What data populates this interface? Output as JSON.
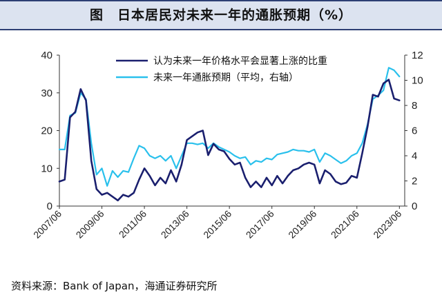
{
  "title": "图　日本居民对未来一年的通胀预期（%）",
  "source": "资料来源：Bank of Japan，海通证券研究所",
  "chart_data": {
    "type": "line",
    "title": "图　日本居民对未来一年的通胀预期（%）",
    "xlabel": "",
    "ylabel": "",
    "x_start": "2007/06",
    "x_end": "2023/09",
    "x_tick_labels": [
      "2007/06",
      "2009/06",
      "2011/06",
      "2013/06",
      "2015/06",
      "2017/06",
      "2019/06",
      "2021/06",
      "2023/06"
    ],
    "left_axis": {
      "ylim": [
        0,
        40
      ],
      "ticks": [
        0,
        10,
        20,
        30,
        40
      ]
    },
    "right_axis": {
      "ylim": [
        0,
        12
      ],
      "ticks": [
        0,
        2,
        4,
        6,
        8,
        10,
        12
      ]
    },
    "legend_position": "top-right",
    "grid": false,
    "series": [
      {
        "name": "认为未来一年价格水平会显著上涨的比重",
        "axis": "left",
        "color": "#1a1f6e",
        "points": [
          [
            "2007/06",
            6.5
          ],
          [
            "2007/09",
            7.0
          ],
          [
            "2007/12",
            23.5
          ],
          [
            "2008/03",
            25.0
          ],
          [
            "2008/06",
            31.0
          ],
          [
            "2008/09",
            28.0
          ],
          [
            "2008/12",
            12.0
          ],
          [
            "2009/03",
            4.5
          ],
          [
            "2009/06",
            3.0
          ],
          [
            "2009/09",
            3.5
          ],
          [
            "2009/12",
            2.5
          ],
          [
            "2010/03",
            1.5
          ],
          [
            "2010/06",
            3.0
          ],
          [
            "2010/09",
            2.5
          ],
          [
            "2010/12",
            3.5
          ],
          [
            "2011/03",
            7.0
          ],
          [
            "2011/06",
            10.0
          ],
          [
            "2011/09",
            8.0
          ],
          [
            "2011/12",
            5.5
          ],
          [
            "2012/03",
            7.5
          ],
          [
            "2012/06",
            6.0
          ],
          [
            "2012/09",
            9.5
          ],
          [
            "2012/12",
            6.5
          ],
          [
            "2013/03",
            11.0
          ],
          [
            "2013/06",
            17.5
          ],
          [
            "2013/09",
            18.5
          ],
          [
            "2013/12",
            19.5
          ],
          [
            "2014/03",
            20.0
          ],
          [
            "2014/06",
            13.5
          ],
          [
            "2014/09",
            16.5
          ],
          [
            "2014/12",
            15.0
          ],
          [
            "2015/03",
            14.5
          ],
          [
            "2015/06",
            12.5
          ],
          [
            "2015/09",
            11.0
          ],
          [
            "2015/12",
            11.5
          ],
          [
            "2016/03",
            7.5
          ],
          [
            "2016/06",
            5.0
          ],
          [
            "2016/09",
            6.5
          ],
          [
            "2016/12",
            5.0
          ],
          [
            "2017/03",
            7.5
          ],
          [
            "2017/06",
            5.5
          ],
          [
            "2017/09",
            8.0
          ],
          [
            "2017/12",
            6.0
          ],
          [
            "2018/03",
            8.0
          ],
          [
            "2018/06",
            9.5
          ],
          [
            "2018/09",
            10.0
          ],
          [
            "2018/12",
            11.0
          ],
          [
            "2019/03",
            11.5
          ],
          [
            "2019/06",
            11.0
          ],
          [
            "2019/09",
            6.0
          ],
          [
            "2019/12",
            9.5
          ],
          [
            "2020/03",
            8.5
          ],
          [
            "2020/06",
            6.5
          ],
          [
            "2020/09",
            5.8
          ],
          [
            "2020/12",
            6.2
          ],
          [
            "2021/03",
            8.0
          ],
          [
            "2021/06",
            7.5
          ],
          [
            "2021/09",
            14.0
          ],
          [
            "2021/12",
            21.0
          ],
          [
            "2022/03",
            29.5
          ],
          [
            "2022/06",
            29.0
          ],
          [
            "2022/09",
            32.5
          ],
          [
            "2022/12",
            33.5
          ],
          [
            "2023/03",
            28.5
          ],
          [
            "2023/06",
            28.0
          ]
        ]
      },
      {
        "name": "未来一年通胀预期（平均，右轴）",
        "axis": "right",
        "color": "#29c0ec",
        "points": [
          [
            "2007/06",
            4.5
          ],
          [
            "2007/09",
            4.5
          ],
          [
            "2007/12",
            7.2
          ],
          [
            "2008/03",
            7.4
          ],
          [
            "2008/06",
            9.0
          ],
          [
            "2008/09",
            8.5
          ],
          [
            "2008/12",
            5.0
          ],
          [
            "2009/03",
            2.5
          ],
          [
            "2009/06",
            3.0
          ],
          [
            "2009/09",
            1.6
          ],
          [
            "2009/12",
            2.8
          ],
          [
            "2010/03",
            2.3
          ],
          [
            "2010/06",
            2.8
          ],
          [
            "2010/09",
            2.7
          ],
          [
            "2010/12",
            3.8
          ],
          [
            "2011/03",
            4.8
          ],
          [
            "2011/06",
            4.6
          ],
          [
            "2011/09",
            4.0
          ],
          [
            "2011/12",
            3.8
          ],
          [
            "2012/03",
            4.0
          ],
          [
            "2012/06",
            3.6
          ],
          [
            "2012/09",
            4.0
          ],
          [
            "2012/12",
            3.0
          ],
          [
            "2013/03",
            4.0
          ],
          [
            "2013/06",
            5.0
          ],
          [
            "2013/09",
            5.0
          ],
          [
            "2013/12",
            4.9
          ],
          [
            "2014/03",
            5.0
          ],
          [
            "2014/06",
            4.6
          ],
          [
            "2014/09",
            5.0
          ],
          [
            "2014/12",
            4.7
          ],
          [
            "2015/03",
            4.5
          ],
          [
            "2015/06",
            4.3
          ],
          [
            "2015/09",
            4.0
          ],
          [
            "2015/12",
            3.8
          ],
          [
            "2016/03",
            3.9
          ],
          [
            "2016/06",
            3.3
          ],
          [
            "2016/09",
            3.6
          ],
          [
            "2016/12",
            3.5
          ],
          [
            "2017/03",
            3.8
          ],
          [
            "2017/06",
            3.7
          ],
          [
            "2017/09",
            4.1
          ],
          [
            "2017/12",
            4.2
          ],
          [
            "2018/03",
            4.3
          ],
          [
            "2018/06",
            4.5
          ],
          [
            "2018/09",
            4.4
          ],
          [
            "2018/12",
            4.4
          ],
          [
            "2019/03",
            4.3
          ],
          [
            "2019/06",
            4.5
          ],
          [
            "2019/09",
            3.5
          ],
          [
            "2019/12",
            4.2
          ],
          [
            "2020/03",
            4.0
          ],
          [
            "2020/06",
            3.7
          ],
          [
            "2020/09",
            3.4
          ],
          [
            "2020/12",
            3.6
          ],
          [
            "2021/03",
            4.0
          ],
          [
            "2021/06",
            4.2
          ],
          [
            "2021/09",
            5.0
          ],
          [
            "2021/12",
            6.5
          ],
          [
            "2022/03",
            8.5
          ],
          [
            "2022/06",
            8.8
          ],
          [
            "2022/09",
            9.2
          ],
          [
            "2022/12",
            11.0
          ],
          [
            "2023/03",
            10.8
          ],
          [
            "2023/06",
            10.3
          ]
        ]
      }
    ]
  }
}
